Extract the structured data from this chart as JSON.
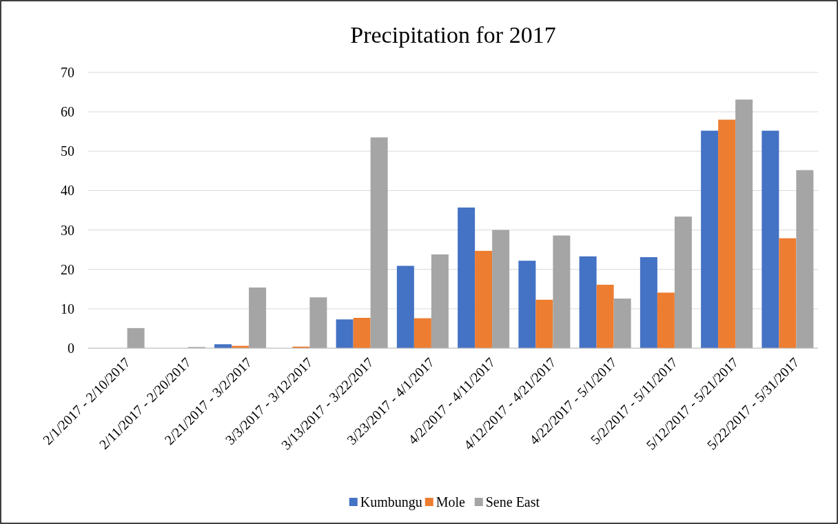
{
  "chart_data": {
    "type": "bar",
    "title": "Precipitation for 2017",
    "categories": [
      "2/1/2017 - 2/10/2017",
      "2/11/2017 - 2/20/2017",
      "2/21/2017 - 3/2/2017",
      "3/3/2017 - 3/12/2017",
      "3/13/2017 - 3/22/2017",
      "3/23/2017 - 4/1/2017",
      "4/2/2017 - 4/11/2017",
      "4/12/2017 - 4/21/2017",
      "4/22/2017 - 5/1/2017",
      "5/2/2017 - 5/11/2017",
      "5/12/2017 - 5/21/2017",
      "5/22/2017 - 5/31/2017"
    ],
    "series": [
      {
        "name": "Kumbungu",
        "color": "#4472c4",
        "values": [
          0,
          0,
          1.0,
          0,
          7.3,
          20.9,
          35.7,
          22.2,
          23.3,
          23.1,
          55.2,
          55.2
        ]
      },
      {
        "name": "Mole",
        "color": "#ed7d31",
        "values": [
          0,
          0,
          0.6,
          0.4,
          7.7,
          7.6,
          24.7,
          12.3,
          16.1,
          14.1,
          58.0,
          27.9
        ]
      },
      {
        "name": "Sene East",
        "color": "#a5a5a5",
        "values": [
          5.1,
          0.3,
          15.4,
          12.9,
          53.5,
          23.8,
          30.0,
          28.6,
          12.6,
          33.4,
          63.1,
          45.2
        ]
      }
    ],
    "ylim": [
      0,
      70
    ],
    "yticks": [
      0,
      10,
      20,
      30,
      40,
      50,
      60,
      70
    ],
    "grid": "y",
    "legend": "bottom"
  }
}
